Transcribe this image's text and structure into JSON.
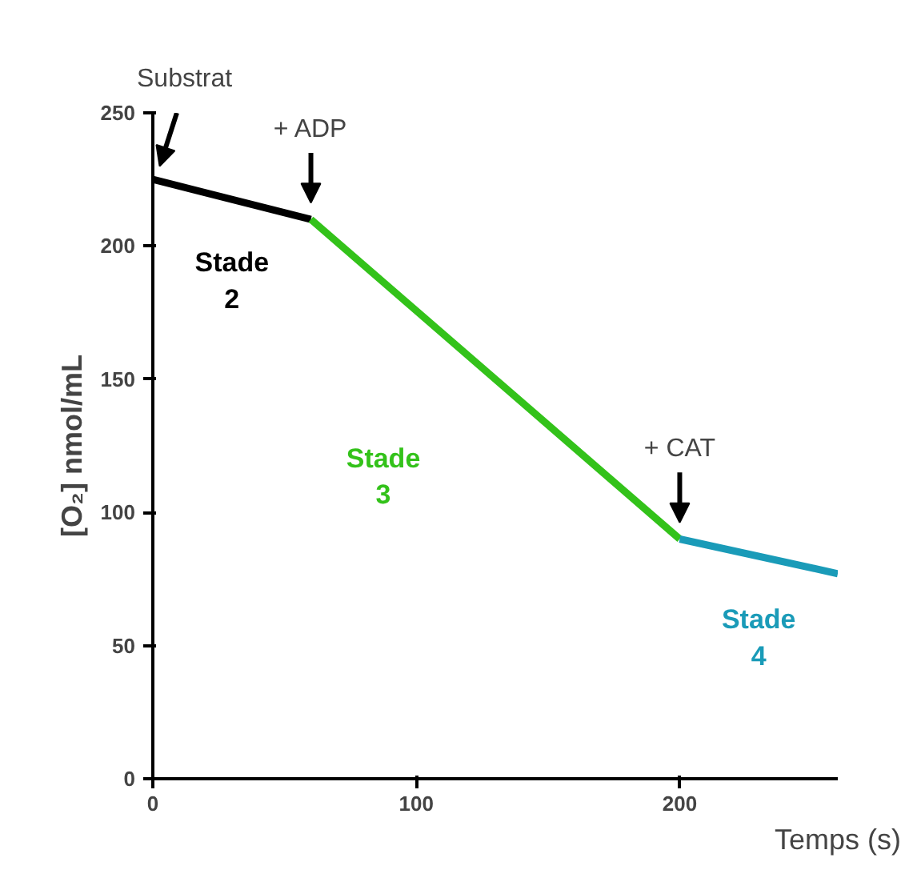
{
  "chart_data": {
    "type": "line",
    "xlabel": "Temps (s)",
    "ylabel": "[O₂] nmol/mL",
    "series": [
      {
        "name": "Stade 2",
        "color": "#000000",
        "x": [
          0,
          60
        ],
        "values": [
          225,
          210
        ]
      },
      {
        "name": "Stade 3",
        "color": "#33c21a",
        "x": [
          60,
          200
        ],
        "values": [
          210,
          90
        ]
      },
      {
        "name": "Stade 4",
        "color": "#1a9bb8",
        "x": [
          200,
          260
        ],
        "values": [
          90,
          77
        ]
      }
    ],
    "annotations": [
      "Substrat",
      {
        "text": "+ ADP",
        "x": 60,
        "y": 210
      },
      {
        "text": "+ CAT",
        "x": 200,
        "y": 90
      }
    ],
    "xlim": [
      0,
      260
    ],
    "xticks": [
      0,
      100,
      200
    ],
    "ylim": [
      0,
      250
    ],
    "yticks": [
      0,
      50,
      100,
      150,
      200,
      250
    ],
    "grid": false,
    "marker": "none",
    "line_style": "solid"
  }
}
